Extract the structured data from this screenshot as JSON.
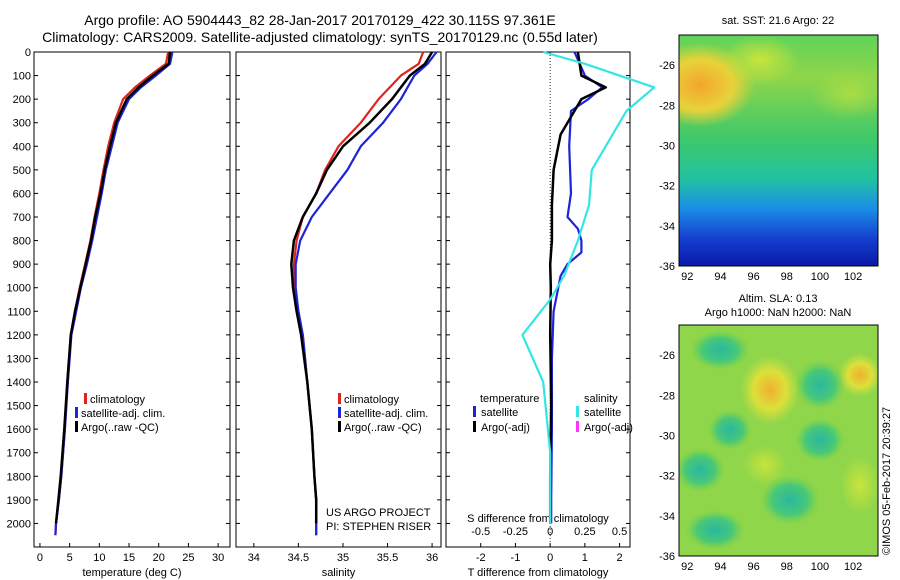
{
  "title_line1": "Argo profile: AO 5904443_82 28-Jan-2017 20170129_422 30.115S 97.361E",
  "title_line2": "Climatology: CARS2009. Satellite-adjusted climatology: synTS_20170129.nc (0.55d later)",
  "colors": {
    "climatology": "#e0231c",
    "satellite": "#1d23d6",
    "argo": "#000000",
    "salinity_satellite": "#33e6e6",
    "salinity_argo": "#ff33ff"
  },
  "text": {
    "proj1": "US ARGO PROJECT",
    "proj2": "PI: STEPHEN RISER",
    "sst_title": "sat. SST: 21.6 Argo: 22",
    "sla_title1": "Altim. SLA: 0.13",
    "sla_title2": "Argo h1000: NaN h2000: NaN",
    "imos": "©IMOS 05-Feb-2017 20:39:27"
  },
  "legend1": {
    "climatology": "climatology",
    "satellite": "satellite-adj. clim.",
    "argo": "Argo(..raw -QC)"
  },
  "legend3": {
    "temperature": "temperature",
    "salinity": "salinity",
    "satellite": "satellite",
    "argo": "Argo(-adj)"
  },
  "chart_data": [
    {
      "type": "line",
      "xlabel": "temperature (deg C)",
      "ylabel": "",
      "xlim": [
        -1,
        32
      ],
      "ylim": [
        2100,
        0
      ],
      "xticks": [
        0,
        5,
        10,
        15,
        20,
        25,
        30
      ],
      "yticks": [
        0,
        100,
        200,
        300,
        400,
        500,
        600,
        700,
        800,
        900,
        1000,
        1100,
        1200,
        1300,
        1400,
        1500,
        1600,
        1700,
        1800,
        1900,
        2000
      ],
      "series": [
        {
          "name": "climatology",
          "color": "#e0231c",
          "x": [
            21.6,
            21.2,
            18.5,
            16,
            14,
            12.5,
            11.5,
            10.7,
            10,
            9.2,
            8.5,
            7.6,
            6.7,
            5.9,
            5.2,
            4.6,
            4.2,
            3.6,
            3.2,
            2.7,
            2.6
          ],
          "y": [
            0,
            50,
            100,
            150,
            200,
            300,
            400,
            500,
            600,
            700,
            800,
            900,
            1000,
            1100,
            1200,
            1400,
            1600,
            1800,
            1900,
            2000,
            2050
          ]
        },
        {
          "name": "satellite-adj. clim.",
          "color": "#1d23d6",
          "x": [
            22.3,
            21.9,
            19.5,
            17,
            15,
            13.1,
            12.1,
            11.1,
            10.4,
            9.6,
            8.8,
            7.9,
            6.9,
            6.1,
            5.3,
            4.7,
            4.2,
            3.6,
            3.2,
            2.7,
            2.6
          ],
          "y": [
            0,
            50,
            100,
            150,
            200,
            300,
            400,
            500,
            600,
            700,
            800,
            900,
            1000,
            1100,
            1200,
            1400,
            1600,
            1800,
            1900,
            2000,
            2050
          ]
        },
        {
          "name": "Argo(..raw -QC)",
          "color": "#000000",
          "x": [
            21.9,
            21.7,
            19,
            16.6,
            14.6,
            12.8,
            11.8,
            10.9,
            10.2,
            9.3,
            8.6,
            7.7,
            6.8,
            5.9,
            5.2,
            4.6,
            4.1,
            3.5,
            3.1,
            2.7
          ],
          "y": [
            0,
            50,
            100,
            150,
            200,
            300,
            400,
            500,
            600,
            700,
            800,
            900,
            1000,
            1100,
            1200,
            1400,
            1600,
            1800,
            1900,
            2000
          ]
        }
      ]
    },
    {
      "type": "line",
      "xlabel": "salinity",
      "ylabel": "",
      "xlim": [
        33.8,
        36.1
      ],
      "ylim": [
        2100,
        0
      ],
      "xticks": [
        34,
        34.5,
        35,
        35.5,
        36
      ],
      "series": [
        {
          "name": "climatology",
          "color": "#e0231c",
          "x": [
            35.9,
            35.85,
            35.65,
            35.4,
            35.2,
            34.95,
            34.8,
            34.7,
            34.55,
            34.48,
            34.45,
            34.45,
            34.5,
            34.55,
            34.6,
            34.65,
            34.68,
            34.7,
            34.7,
            34.7
          ],
          "y": [
            0,
            50,
            100,
            200,
            300,
            400,
            500,
            600,
            700,
            800,
            900,
            1000,
            1100,
            1200,
            1400,
            1600,
            1800,
            1900,
            2000,
            2050
          ]
        },
        {
          "name": "satellite-adj. clim.",
          "color": "#1d23d6",
          "x": [
            36.05,
            35.95,
            35.8,
            35.65,
            35.45,
            35.2,
            35.05,
            34.85,
            34.65,
            34.52,
            34.47,
            34.47,
            34.5,
            34.55,
            34.6,
            34.65,
            34.68,
            34.7,
            34.7,
            34.7
          ],
          "y": [
            0,
            50,
            100,
            200,
            300,
            400,
            500,
            600,
            700,
            800,
            900,
            1000,
            1100,
            1200,
            1400,
            1600,
            1800,
            1900,
            2000,
            2050
          ]
        },
        {
          "name": "Argo(..raw -QC)",
          "color": "#000000",
          "x": [
            36.0,
            35.92,
            35.75,
            35.55,
            35.3,
            35.0,
            34.82,
            34.7,
            34.55,
            34.45,
            34.42,
            34.44,
            34.48,
            34.53,
            34.6,
            34.65,
            34.68,
            34.7,
            34.7
          ],
          "y": [
            0,
            50,
            100,
            200,
            300,
            400,
            500,
            600,
            700,
            800,
            900,
            1000,
            1100,
            1200,
            1400,
            1600,
            1800,
            1900,
            2000
          ]
        }
      ]
    },
    {
      "type": "line",
      "xlabel": "T difference from climatology",
      "ylabel": "",
      "xlim": [
        -3,
        2.3
      ],
      "ylim": [
        2100,
        0
      ],
      "xticks": [
        -2,
        -1,
        0,
        1,
        2
      ],
      "secondary_axis": {
        "label": "S difference from climatology",
        "ticks": [
          -0.5,
          -0.25,
          0,
          0.25,
          0.5
        ]
      },
      "series": [
        {
          "name": "temperature satellite",
          "color": "#1d23d6",
          "x": [
            0.7,
            1.0,
            1.5,
            1.1,
            0.6,
            0.55,
            0.6,
            0.5,
            0.8,
            0.9,
            0.9,
            0.5,
            0.3,
            0.1,
            0.05,
            0.05,
            0.03,
            0.03
          ],
          "y": [
            0,
            100,
            150,
            200,
            250,
            400,
            600,
            700,
            750,
            800,
            850,
            900,
            950,
            1100,
            1300,
            1600,
            1900,
            2000
          ]
        },
        {
          "name": "temperature Argo(-adj)",
          "color": "#000000",
          "x": [
            0.8,
            0.9,
            1.6,
            0.9,
            0.7,
            0.3,
            0.1,
            0.05,
            0.05,
            0.0,
            0.02,
            0.0,
            0.03,
            0.0,
            0.0
          ],
          "y": [
            0,
            100,
            150,
            200,
            250,
            350,
            500,
            650,
            800,
            900,
            1000,
            1200,
            1500,
            1800,
            2000
          ]
        },
        {
          "name": "salinity satellite",
          "color": "#33e6e6",
          "x": [
            -0.05,
            0.25,
            0.75,
            0.55,
            0.45,
            0.3,
            0.28,
            0.2,
            0.1,
            0.0,
            -0.2,
            -0.05,
            0.0,
            0.0
          ],
          "y": [
            0,
            50,
            150,
            250,
            350,
            500,
            650,
            800,
            950,
            1050,
            1200,
            1400,
            1700,
            2000
          ]
        },
        {
          "name": "salinity Argo(-adj)",
          "color": "#ff33ff",
          "x": [],
          "y": []
        }
      ]
    },
    {
      "type": "heatmap",
      "title": "sat. SST: 21.6 Argo: 22",
      "xticks": [
        92,
        94,
        96,
        98,
        100,
        102
      ],
      "yticks": [
        -26,
        -28,
        -30,
        -32,
        -34,
        -36
      ],
      "xlim": [
        91.5,
        103.5
      ],
      "ylim": [
        -36,
        -24.5
      ]
    },
    {
      "type": "heatmap",
      "title": "Altim. SLA: 0.13",
      "xticks": [
        92,
        94,
        96,
        98,
        100,
        102
      ],
      "yticks": [
        -26,
        -28,
        -30,
        -32,
        -34,
        -36
      ],
      "xlim": [
        91.5,
        103.5
      ],
      "ylim": [
        -36,
        -24.5
      ]
    }
  ]
}
